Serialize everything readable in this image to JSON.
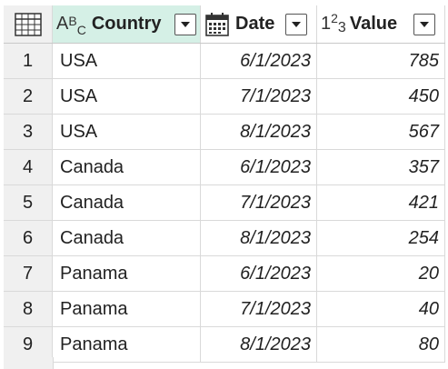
{
  "columns": {
    "country": {
      "label": "Country",
      "type_icon": "text-type-icon"
    },
    "date": {
      "label": "Date",
      "type_icon": "calendar-date-icon"
    },
    "value": {
      "label": "Value",
      "type_icon": "whole-number-icon"
    }
  },
  "rows": [
    {
      "idx": "1",
      "country": "USA",
      "date": "6/1/2023",
      "value": "785"
    },
    {
      "idx": "2",
      "country": "USA",
      "date": "7/1/2023",
      "value": "450"
    },
    {
      "idx": "3",
      "country": "USA",
      "date": "8/1/2023",
      "value": "567"
    },
    {
      "idx": "4",
      "country": "Canada",
      "date": "6/1/2023",
      "value": "357"
    },
    {
      "idx": "5",
      "country": "Canada",
      "date": "7/1/2023",
      "value": "421"
    },
    {
      "idx": "6",
      "country": "Canada",
      "date": "8/1/2023",
      "value": "254"
    },
    {
      "idx": "7",
      "country": "Panama",
      "date": "6/1/2023",
      "value": "20"
    },
    {
      "idx": "8",
      "country": "Panama",
      "date": "7/1/2023",
      "value": "40"
    },
    {
      "idx": "9",
      "country": "Panama",
      "date": "8/1/2023",
      "value": "80"
    }
  ],
  "colors": {
    "selected_header": "#d5f0e6",
    "index_column": "#f0f0f0",
    "gridline": "#d9d9d9"
  }
}
